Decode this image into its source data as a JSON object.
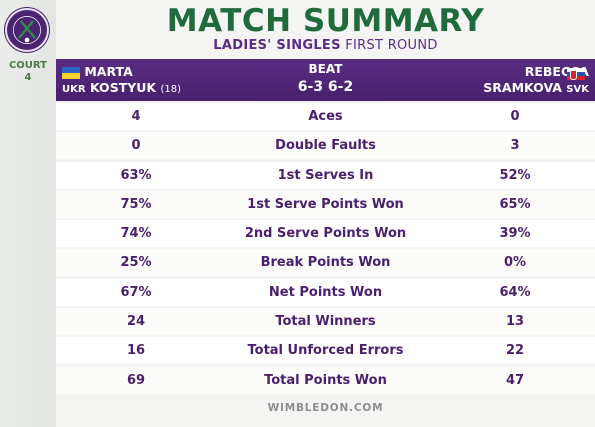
{
  "header": {
    "title": "MATCH SUMMARY",
    "subtitle_bold": "LADIES' SINGLES",
    "subtitle_regular": "FIRST ROUND",
    "court_line1": "COURT",
    "court_line2": "4"
  },
  "players": {
    "left": {
      "first_name": "MARTA",
      "last_name": "KOSTYUK",
      "seed": "(18)",
      "country": "UKR"
    },
    "right": {
      "first_name": "REBECCA",
      "last_name": "SRAMKOVA",
      "country": "SVK"
    }
  },
  "result": {
    "label": "BEAT",
    "score": "6-3 6-2"
  },
  "stats": [
    {
      "left": "4",
      "label": "Aces",
      "right": "0"
    },
    {
      "left": "0",
      "label": "Double Faults",
      "right": "3"
    },
    {
      "left": "63%",
      "label": "1st Serves In",
      "right": "52%"
    },
    {
      "left": "75%",
      "label": "1st Serve Points Won",
      "right": "65%"
    },
    {
      "left": "74%",
      "label": "2nd Serve Points Won",
      "right": "39%"
    },
    {
      "left": "25%",
      "label": "Break Points Won",
      "right": "0%"
    },
    {
      "left": "67%",
      "label": "Net Points Won",
      "right": "64%"
    },
    {
      "left": "24",
      "label": "Total Winners",
      "right": "13"
    },
    {
      "left": "16",
      "label": "Total Unforced Errors",
      "right": "22"
    },
    {
      "left": "69",
      "label": "Total Points Won",
      "right": "47"
    }
  ],
  "footer": {
    "site": "WIMBLEDON.COM"
  },
  "icons": {
    "logo": "wimbledon-logo-icon",
    "flag_left": "ukraine-flag-icon",
    "flag_right": "slovakia-flag-icon"
  },
  "colors": {
    "purple": "#4b2572",
    "green": "#1f6b3c",
    "text_purple": "#4a1f6e"
  }
}
